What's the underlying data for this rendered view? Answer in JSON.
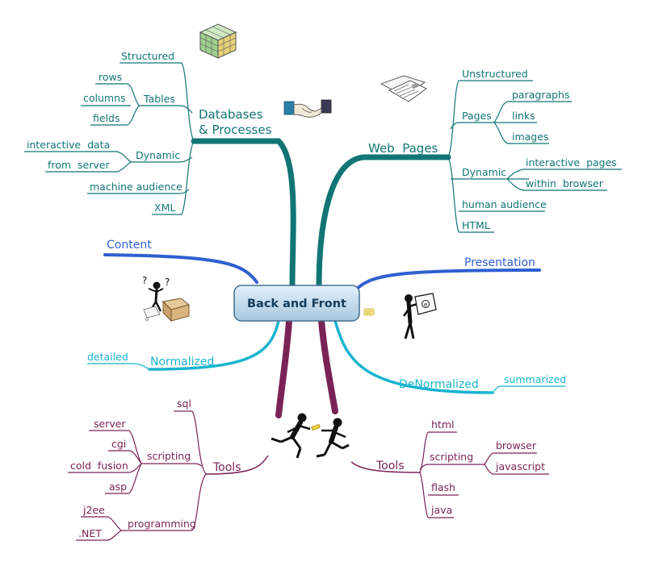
{
  "center": "Back and Front",
  "databases": {
    "title_line1": "Databases",
    "title_line2": "& Processes",
    "structured": "Structured",
    "tables": "Tables",
    "tables_children": [
      "rows",
      "columns",
      "fields"
    ],
    "dynamic": "Dynamic",
    "dynamic_children": [
      "interactive  data",
      "from  server"
    ],
    "machine_audience": "machine audience",
    "xml": "XML"
  },
  "webpages": {
    "title": "Web  Pages",
    "unstructured": "Unstructured",
    "pages": "Pages",
    "pages_children": [
      "paragraphs",
      "links",
      "images"
    ],
    "dynamic": "Dynamic",
    "dynamic_children": [
      "interactive  pages",
      "within  browser"
    ],
    "human_audience": "human audience",
    "html": "HTML"
  },
  "content": "Content",
  "presentation": "Presentation",
  "normalized": {
    "label": "Normalized",
    "child": "detailed"
  },
  "denormalized": {
    "label": "DeNormalized",
    "child": "summarized"
  },
  "tools_left": {
    "label": "Tools",
    "sql": "sql",
    "scripting": "scripting",
    "scripting_children": [
      "server",
      "cgi",
      "cold  fusion",
      "asp"
    ],
    "programming": "programming",
    "programming_children": [
      "j2ee",
      ".NET"
    ]
  },
  "tools_right": {
    "label": "Tools",
    "html": "html",
    "scripting": "scripting",
    "scripting_children": [
      "browser",
      "javascript"
    ],
    "flash": "flash",
    "java": "java"
  },
  "colors": {
    "teal": "#127575",
    "blue": "#2f5fd0",
    "cyan": "#19b4cf",
    "plum": "#7a2357"
  }
}
